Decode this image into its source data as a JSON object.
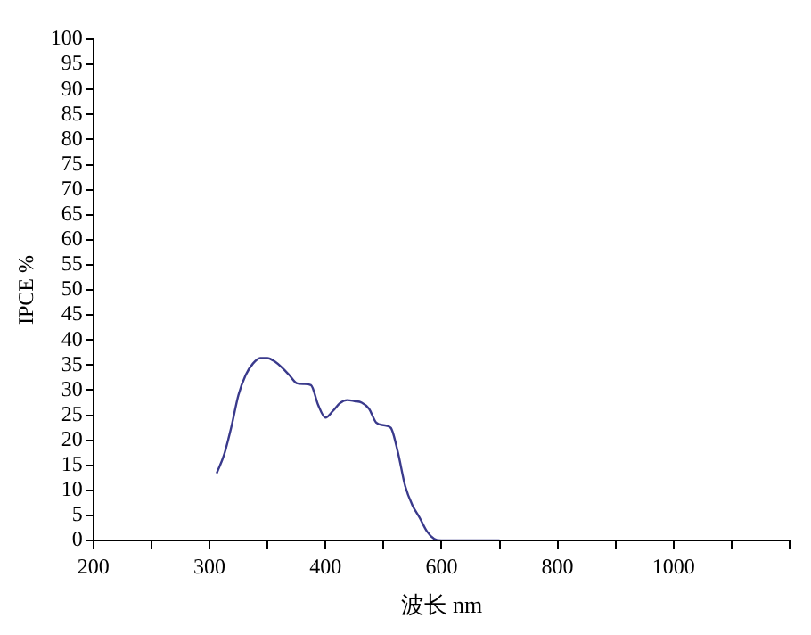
{
  "chart_data": {
    "type": "line",
    "xlabel": "波长 nm",
    "ylabel": "IPCE %",
    "categories": [
      "200",
      null,
      null,
      null,
      null,
      null,
      null,
      null,
      null,
      null,
      null,
      null,
      null,
      null,
      null,
      null,
      "300",
      null,
      null,
      null,
      null,
      null,
      null,
      null,
      null,
      null,
      null,
      null,
      null,
      null,
      null,
      null,
      "400",
      null,
      null,
      null,
      null,
      null,
      null,
      null,
      null,
      null,
      null,
      null,
      null,
      null,
      null,
      null,
      "600",
      null,
      null,
      null,
      null,
      null,
      null,
      null,
      null,
      null,
      null,
      null,
      null,
      null,
      null,
      null,
      "800",
      null,
      null,
      null,
      null,
      null,
      null,
      null,
      null,
      null,
      null,
      null,
      null,
      null,
      null,
      null,
      "1000",
      null,
      null,
      null,
      null,
      null,
      null,
      null,
      null,
      null,
      null,
      null,
      null,
      null,
      null,
      null,
      null
    ],
    "values": [
      null,
      null,
      null,
      null,
      null,
      null,
      null,
      null,
      null,
      null,
      null,
      null,
      null,
      null,
      null,
      null,
      null,
      13.4,
      17,
      22.5,
      29,
      33,
      35.3,
      36.4,
      36.4,
      35.7,
      34.5,
      33,
      31.4,
      31.2,
      31,
      27,
      24.5,
      25.8,
      27.4,
      28,
      27.8,
      27.5,
      26.3,
      23.5,
      23,
      22.5,
      17.5,
      10.8,
      7,
      4.5,
      1.8,
      0.3,
      0,
      0,
      0,
      0,
      0,
      0,
      0,
      0,
      0,
      null,
      null,
      null,
      null,
      null,
      null,
      null,
      null,
      null,
      null,
      null,
      null,
      null,
      null,
      null,
      null,
      null,
      null,
      null,
      null,
      null,
      null,
      null,
      null,
      null,
      null,
      null,
      null,
      null,
      null,
      null,
      null,
      null,
      null,
      null,
      null,
      null,
      null,
      null,
      null
    ],
    "color": "#3a3a8c",
    "ylim": [
      0,
      100
    ],
    "yticks": [
      0,
      5,
      10,
      15,
      20,
      25,
      30,
      35,
      40,
      45,
      50,
      55,
      60,
      65,
      70,
      75,
      80,
      85,
      90,
      95,
      100
    ],
    "grid": false,
    "legend": false,
    "marker": "none",
    "line_style": "solid"
  }
}
